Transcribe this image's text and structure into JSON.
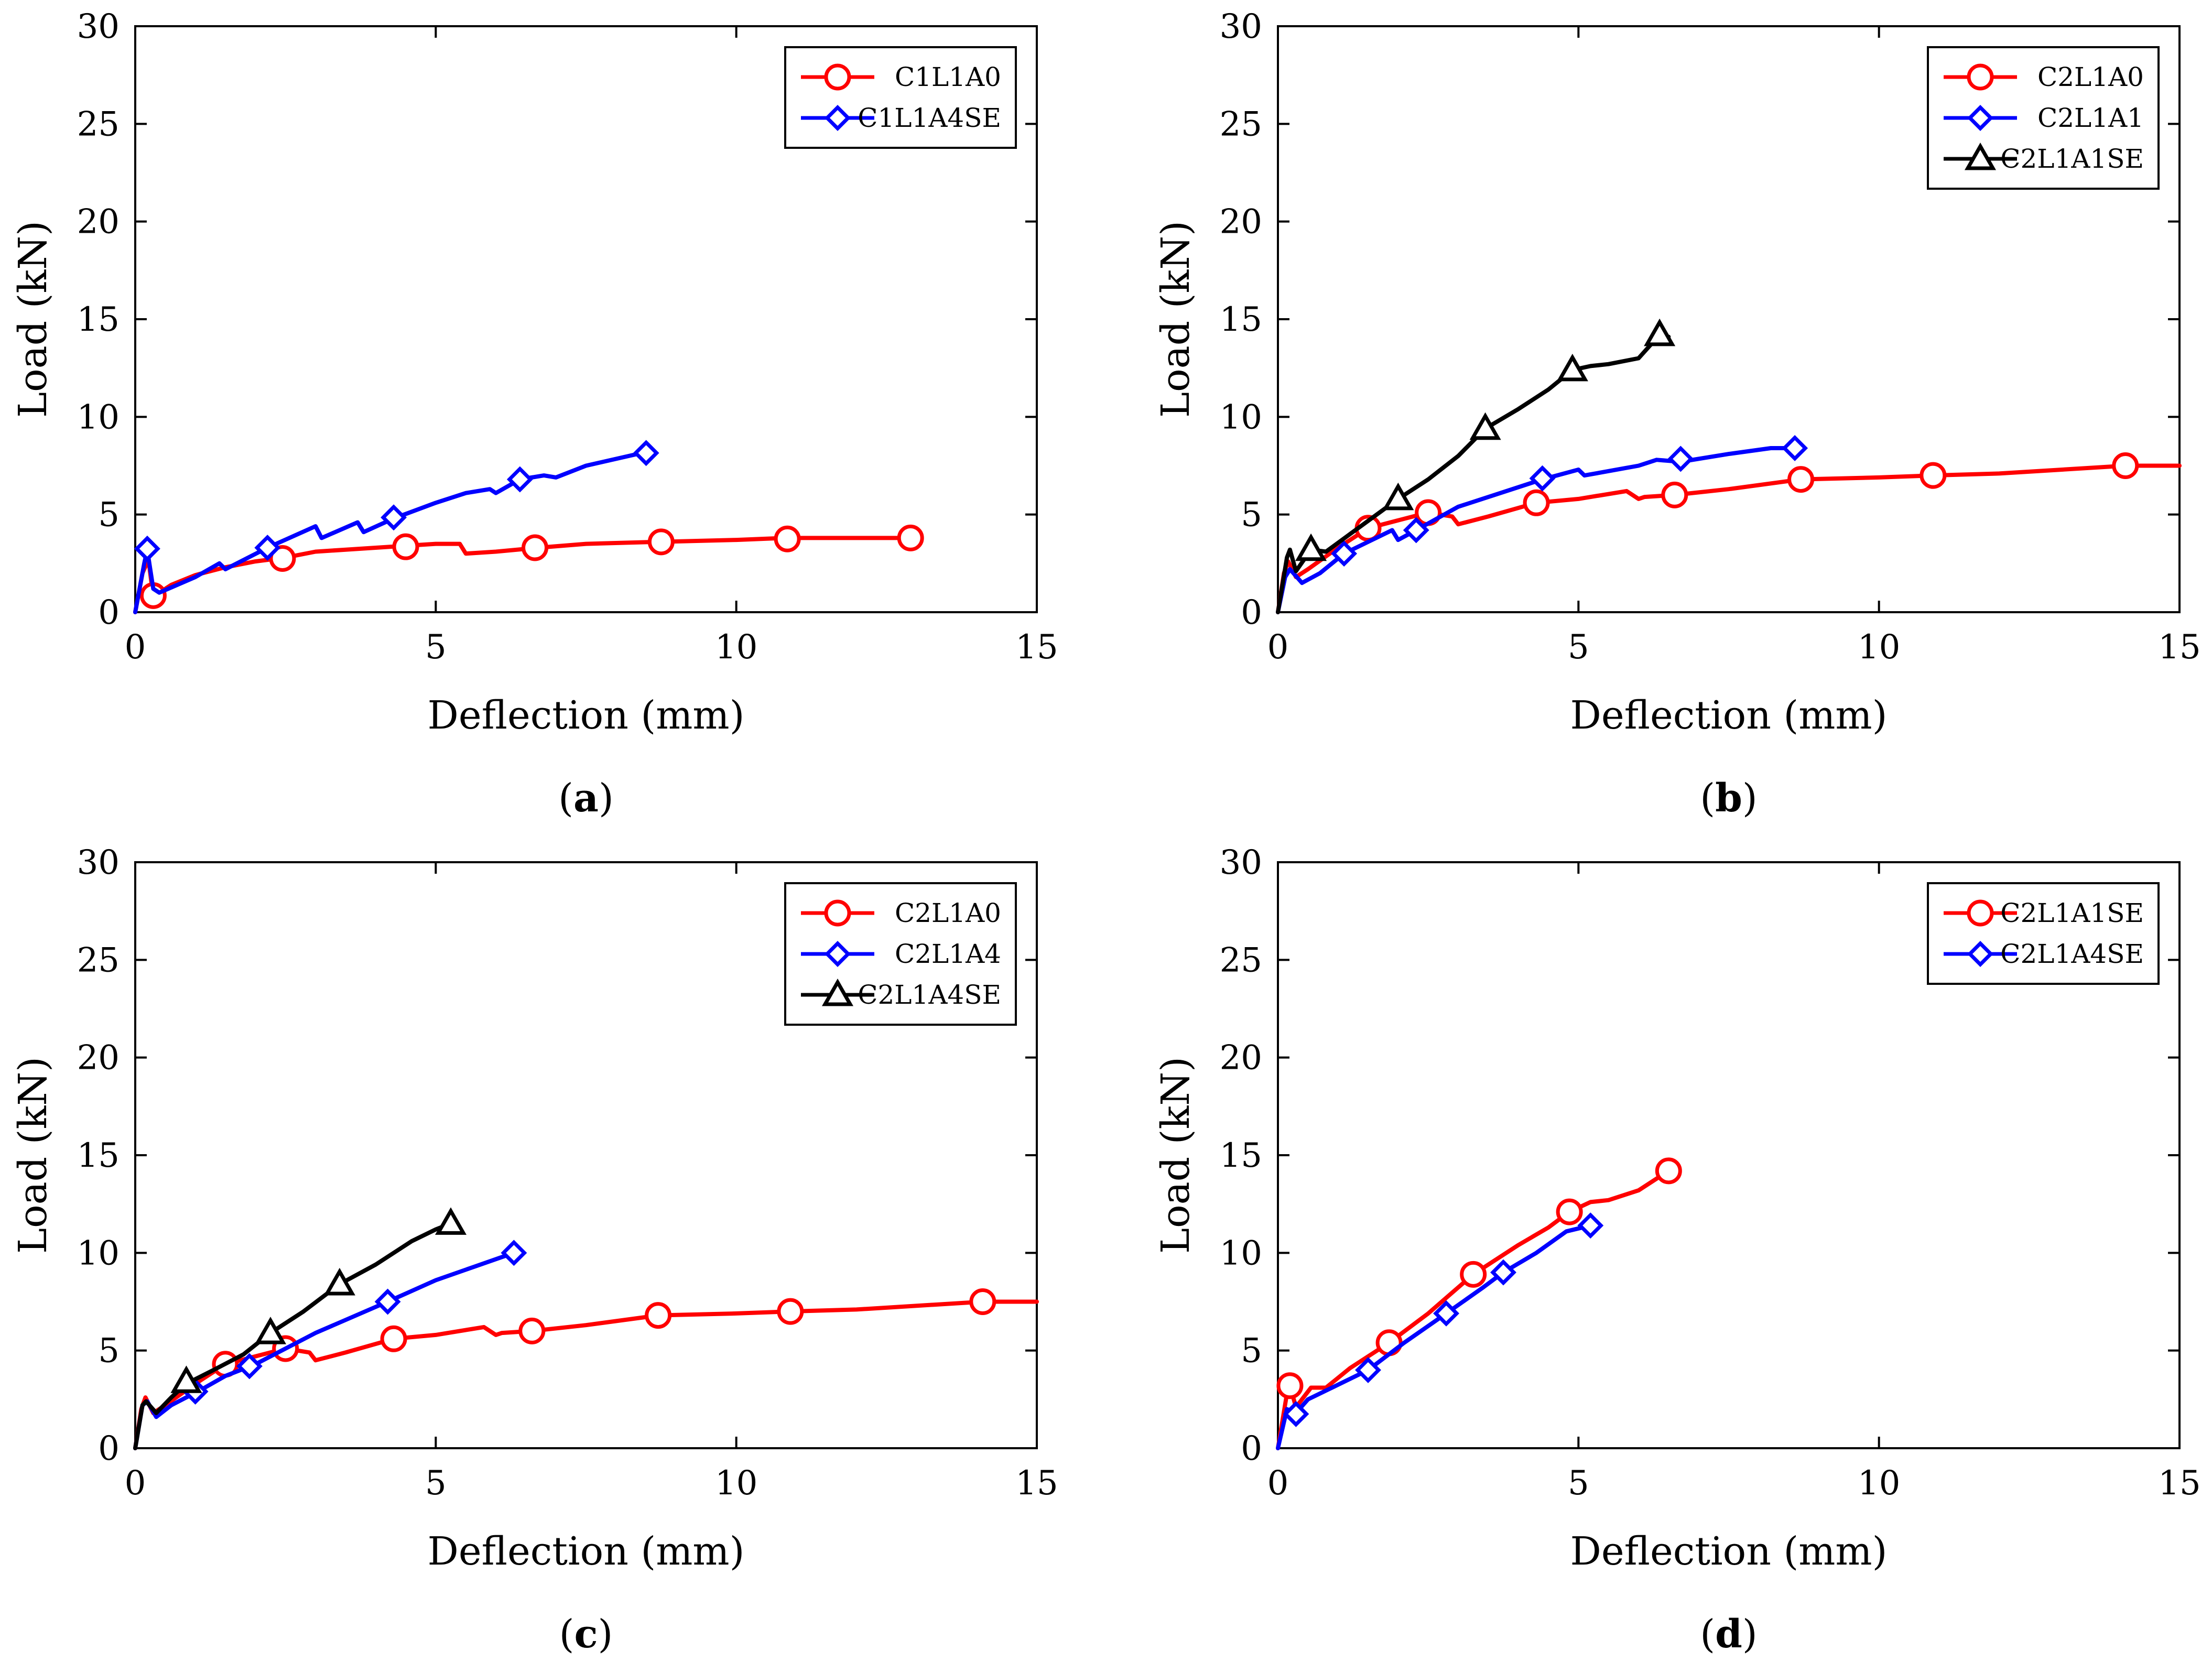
{
  "chart_data": [
    {
      "type": "line",
      "panel_label": "a",
      "xlabel": "Deflection (mm)",
      "ylabel": "Load (kN)",
      "xlim": [
        0,
        15
      ],
      "ylim": [
        0,
        30
      ],
      "xticks": [
        0,
        5,
        10,
        15
      ],
      "yticks": [
        0,
        5,
        10,
        15,
        20,
        25,
        30
      ],
      "legend_position": "top-right",
      "series": [
        {
          "name": "C1L1A0",
          "color": "#ff0000",
          "marker": "circle",
          "x": [
            0,
            0.12,
            0.22,
            0.3,
            0.4,
            0.6,
            1.0,
            1.5,
            2.0,
            2.5,
            3.0,
            3.5,
            4.0,
            4.5,
            5.0,
            5.4,
            5.5,
            6.0,
            6.7,
            7.5,
            8.7,
            10.0,
            10.8,
            12.0,
            12.9
          ],
          "y": [
            0,
            2.0,
            2.7,
            0.8,
            1.0,
            1.4,
            1.9,
            2.3,
            2.6,
            2.8,
            3.1,
            3.2,
            3.3,
            3.4,
            3.5,
            3.5,
            3.0,
            3.1,
            3.3,
            3.5,
            3.6,
            3.7,
            3.8,
            3.8,
            3.8
          ],
          "marker_x": [
            0.3,
            2.45,
            4.5,
            6.65,
            8.75,
            10.85,
            12.9
          ],
          "marker_y": [
            0.85,
            2.75,
            3.35,
            3.3,
            3.6,
            3.75,
            3.8
          ]
        },
        {
          "name": "C1L1A4SE",
          "color": "#0000ff",
          "marker": "diamond",
          "x": [
            0,
            0.15,
            0.2,
            0.3,
            0.4,
            1.0,
            1.4,
            1.5,
            2.2,
            3.0,
            3.1,
            3.7,
            3.8,
            4.3,
            5.0,
            5.5,
            5.9,
            6.0,
            6.4,
            6.8,
            7.0,
            7.5,
            8.5
          ],
          "y": [
            0,
            2.5,
            3.2,
            1.2,
            1.0,
            1.8,
            2.5,
            2.2,
            3.3,
            4.4,
            3.8,
            4.6,
            4.1,
            4.8,
            5.6,
            6.1,
            6.3,
            6.1,
            6.8,
            7.0,
            6.9,
            7.5,
            8.2
          ],
          "marker_x": [
            0.2,
            2.2,
            4.3,
            6.4,
            8.5
          ],
          "marker_y": [
            3.25,
            3.3,
            4.85,
            6.8,
            8.15
          ]
        }
      ]
    },
    {
      "type": "line",
      "panel_label": "b",
      "xlabel": "Deflection (mm)",
      "ylabel": "Load (kN)",
      "xlim": [
        0,
        15
      ],
      "ylim": [
        0,
        30
      ],
      "xticks": [
        0,
        5,
        10,
        15
      ],
      "yticks": [
        0,
        5,
        10,
        15,
        20,
        25,
        30
      ],
      "legend_position": "top-right",
      "series": [
        {
          "name": "C2L1A0",
          "color": "#ff0000",
          "marker": "circle",
          "x": [
            0,
            0.1,
            0.17,
            0.3,
            0.5,
            1.0,
            1.5,
            2.0,
            2.5,
            2.9,
            3.0,
            3.5,
            4.3,
            5.0,
            5.8,
            6.0,
            6.1,
            6.6,
            7.5,
            8.7,
            10.0,
            10.9,
            12.0,
            14.1,
            15.0
          ],
          "y": [
            0,
            2.0,
            2.6,
            1.8,
            2.2,
            3.3,
            4.3,
            4.7,
            5.1,
            4.9,
            4.5,
            4.9,
            5.6,
            5.8,
            6.2,
            5.8,
            5.9,
            6.0,
            6.3,
            6.8,
            6.9,
            7.0,
            7.1,
            7.5,
            7.5
          ],
          "marker_x": [
            1.5,
            2.5,
            4.3,
            6.6,
            8.7,
            10.9,
            14.1
          ],
          "marker_y": [
            4.3,
            5.1,
            5.6,
            6.0,
            6.8,
            7.0,
            7.5
          ]
        },
        {
          "name": "C2L1A1",
          "color": "#0000ff",
          "marker": "diamond",
          "x": [
            0,
            0.12,
            0.2,
            0.4,
            0.7,
            1.1,
            1.5,
            1.9,
            2.0,
            2.3,
            3.0,
            4.4,
            5.0,
            5.1,
            6.0,
            6.3,
            6.7,
            7.5,
            8.2,
            8.6
          ],
          "y": [
            0,
            1.8,
            2.2,
            1.5,
            2.0,
            3.0,
            3.6,
            4.2,
            3.7,
            4.2,
            5.4,
            6.8,
            7.3,
            7.0,
            7.5,
            7.8,
            7.7,
            8.1,
            8.4,
            8.4
          ],
          "marker_x": [
            1.1,
            2.3,
            4.4,
            6.7,
            8.6
          ],
          "marker_y": [
            3.0,
            4.2,
            6.85,
            7.85,
            8.4
          ]
        },
        {
          "name": "C2L1A1SE",
          "color": "#000000",
          "marker": "triangle",
          "x": [
            0,
            0.15,
            0.2,
            0.3,
            0.55,
            0.8,
            1.2,
            1.6,
            2.0,
            2.5,
            3.0,
            3.45,
            4.0,
            4.5,
            4.9,
            5.2,
            5.5,
            6.0,
            6.35,
            6.5
          ],
          "y": [
            0,
            2.8,
            3.2,
            2.1,
            3.2,
            3.1,
            4.0,
            4.9,
            5.8,
            6.8,
            8.0,
            9.4,
            10.4,
            11.4,
            12.4,
            12.6,
            12.7,
            13.0,
            14.2,
            14.1
          ],
          "marker_x": [
            0.55,
            2.0,
            3.45,
            4.9,
            6.35
          ],
          "marker_y": [
            3.2,
            5.8,
            9.4,
            12.4,
            14.2
          ]
        }
      ]
    },
    {
      "type": "line",
      "panel_label": "c",
      "xlabel": "Deflection (mm)",
      "ylabel": "Load (kN)",
      "xlim": [
        0,
        15
      ],
      "ylim": [
        0,
        30
      ],
      "xticks": [
        0,
        5,
        10,
        15
      ],
      "yticks": [
        0,
        5,
        10,
        15,
        20,
        25,
        30
      ],
      "legend_position": "top-right",
      "series": [
        {
          "name": "C2L1A0",
          "color": "#ff0000",
          "marker": "circle",
          "x": [
            0,
            0.1,
            0.17,
            0.3,
            0.5,
            1.0,
            1.5,
            2.0,
            2.5,
            2.9,
            3.0,
            3.5,
            4.3,
            5.0,
            5.8,
            6.0,
            6.1,
            6.6,
            7.5,
            8.7,
            10.0,
            10.9,
            12.0,
            14.1,
            15.0
          ],
          "y": [
            0,
            2.0,
            2.6,
            1.8,
            2.2,
            3.3,
            4.3,
            4.7,
            5.1,
            4.9,
            4.5,
            4.9,
            5.6,
            5.8,
            6.2,
            5.8,
            5.9,
            6.0,
            6.3,
            6.8,
            6.9,
            7.0,
            7.1,
            7.5,
            7.5
          ],
          "marker_x": [
            1.5,
            2.5,
            4.3,
            6.6,
            8.7,
            10.9,
            14.1
          ],
          "marker_y": [
            4.3,
            5.1,
            5.6,
            6.0,
            6.8,
            7.0,
            7.5
          ]
        },
        {
          "name": "C2L1A4",
          "color": "#0000ff",
          "marker": "diamond",
          "x": [
            0,
            0.12,
            0.2,
            0.35,
            0.6,
            1.1,
            1.5,
            2.0,
            3.0,
            4.2,
            5.0,
            6.3
          ],
          "y": [
            0,
            2.2,
            2.4,
            1.6,
            2.2,
            3.0,
            3.7,
            4.3,
            5.9,
            7.5,
            8.6,
            10.0
          ],
          "marker_x": [
            1.0,
            1.9,
            4.2,
            6.3
          ],
          "marker_y": [
            2.9,
            4.2,
            7.5,
            10.0
          ]
        },
        {
          "name": "C2L1A4SE",
          "color": "#000000",
          "marker": "triangle",
          "x": [
            0,
            0.12,
            0.18,
            0.35,
            0.6,
            0.85,
            1.3,
            1.8,
            2.25,
            2.8,
            3.4,
            4.0,
            4.6,
            5.0,
            5.25
          ],
          "y": [
            0,
            2.2,
            2.4,
            1.8,
            2.6,
            3.3,
            4.0,
            4.8,
            5.9,
            7.0,
            8.4,
            9.4,
            10.6,
            11.2,
            11.5
          ],
          "marker_x": [
            0.85,
            2.25,
            3.4,
            5.25
          ],
          "marker_y": [
            3.4,
            5.9,
            8.4,
            11.5
          ]
        }
      ]
    },
    {
      "type": "line",
      "panel_label": "d",
      "xlabel": "Deflection (mm)",
      "ylabel": "Load (kN)",
      "xlim": [
        0,
        15
      ],
      "ylim": [
        0,
        30
      ],
      "xticks": [
        0,
        5,
        10,
        15
      ],
      "yticks": [
        0,
        5,
        10,
        15,
        20,
        25,
        30
      ],
      "legend_position": "top-right",
      "series": [
        {
          "name": "C2L1A1SE",
          "color": "#ff0000",
          "marker": "circle",
          "x": [
            0,
            0.15,
            0.2,
            0.3,
            0.55,
            0.8,
            1.2,
            1.85,
            2.5,
            3.25,
            4.0,
            4.5,
            4.85,
            5.2,
            5.5,
            6.0,
            6.5
          ],
          "y": [
            0,
            2.8,
            3.2,
            2.1,
            3.1,
            3.1,
            4.1,
            5.4,
            6.9,
            8.9,
            10.4,
            11.3,
            12.1,
            12.6,
            12.7,
            13.2,
            14.2
          ],
          "marker_x": [
            0.2,
            1.85,
            3.25,
            4.85,
            6.5
          ],
          "marker_y": [
            3.2,
            5.4,
            8.9,
            12.1,
            14.2
          ]
        },
        {
          "name": "C2L1A4SE",
          "color": "#0000ff",
          "marker": "diamond",
          "x": [
            0,
            0.15,
            0.3,
            0.5,
            0.9,
            1.5,
            2.1,
            2.8,
            3.4,
            3.75,
            4.3,
            4.8,
            5.2
          ],
          "y": [
            0,
            2.0,
            1.8,
            2.5,
            3.1,
            4.0,
            5.4,
            6.9,
            8.2,
            9.0,
            10.0,
            11.1,
            11.4
          ],
          "marker_x": [
            0.3,
            1.5,
            2.8,
            3.75,
            5.2
          ],
          "marker_y": [
            1.75,
            4.0,
            6.9,
            9.0,
            11.4
          ]
        }
      ]
    }
  ]
}
